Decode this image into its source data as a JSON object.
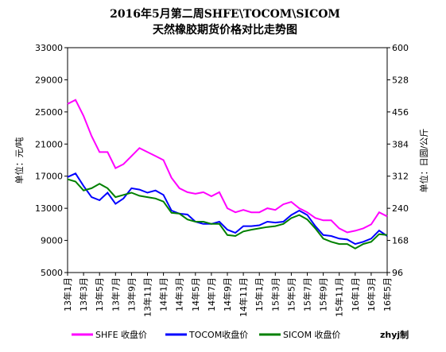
{
  "chart_data": {
    "type": "line",
    "title": "2016年5月第二周SHFE\\TOCOM\\SICOM",
    "subtitle": "天然橡胶期货价格对比走势图",
    "y_label": "单位：元/吨",
    "y2_label": "单位：日圆/公斤",
    "annotation": "zhyj制",
    "categories": [
      "13年1月",
      null,
      "13年3月",
      null,
      "13年5月",
      null,
      "13年7月",
      null,
      "13年9月",
      null,
      "13年11月",
      null,
      "14年1月",
      null,
      "14年3月",
      null,
      "14年5月",
      null,
      "14年7月",
      null,
      "14年9月",
      null,
      "14年11月",
      null,
      "15年1月",
      null,
      "15年3月",
      null,
      "15年5月",
      null,
      "15年7月",
      null,
      "15年9月",
      null,
      "15年11月",
      null,
      "16年1月",
      null,
      "16年3月",
      null,
      "16年5月"
    ],
    "ylim": [
      5000,
      33000
    ],
    "yticks": [
      5000,
      9000,
      13000,
      17000,
      21000,
      25000,
      29000,
      33000
    ],
    "y2lim": [
      96,
      600
    ],
    "y2ticks": [
      96,
      168,
      240,
      312,
      384,
      456,
      528,
      600
    ],
    "legend": "bottom",
    "series": [
      {
        "name": "SHFE 收盘价",
        "color": "#ff00ff",
        "values": [
          26000,
          26500,
          24500,
          22000,
          20000,
          20000,
          18000,
          18500,
          19500,
          20500,
          20000,
          19500,
          19000,
          16800,
          15500,
          15000,
          14800,
          15000,
          14500,
          15000,
          13000,
          12500,
          12800,
          12500,
          12500,
          13000,
          12800,
          13500,
          13800,
          13000,
          12500,
          11800,
          11500,
          11500,
          10500,
          10000,
          10200,
          10500,
          11000,
          12500,
          12000
        ]
      },
      {
        "name": "TOCOM收盘价",
        "color": "#0000ff",
        "axis": "y2",
        "values": [
          310,
          318,
          290,
          265,
          258,
          275,
          250,
          262,
          285,
          282,
          275,
          280,
          270,
          235,
          228,
          226,
          210,
          205,
          205,
          210,
          192,
          185,
          200,
          200,
          202,
          210,
          208,
          210,
          225,
          235,
          225,
          200,
          180,
          178,
          172,
          170,
          160,
          165,
          172,
          190,
          178
        ]
      },
      {
        "name": "SICOM 收盘价",
        "color": "#008000",
        "axis": "y2",
        "values": [
          305,
          300,
          280,
          285,
          295,
          285,
          265,
          270,
          275,
          268,
          265,
          262,
          255,
          230,
          228,
          215,
          210,
          210,
          205,
          205,
          180,
          178,
          188,
          192,
          195,
          198,
          200,
          205,
          218,
          225,
          215,
          195,
          172,
          165,
          160,
          160,
          150,
          160,
          165,
          182,
          180
        ]
      }
    ]
  }
}
